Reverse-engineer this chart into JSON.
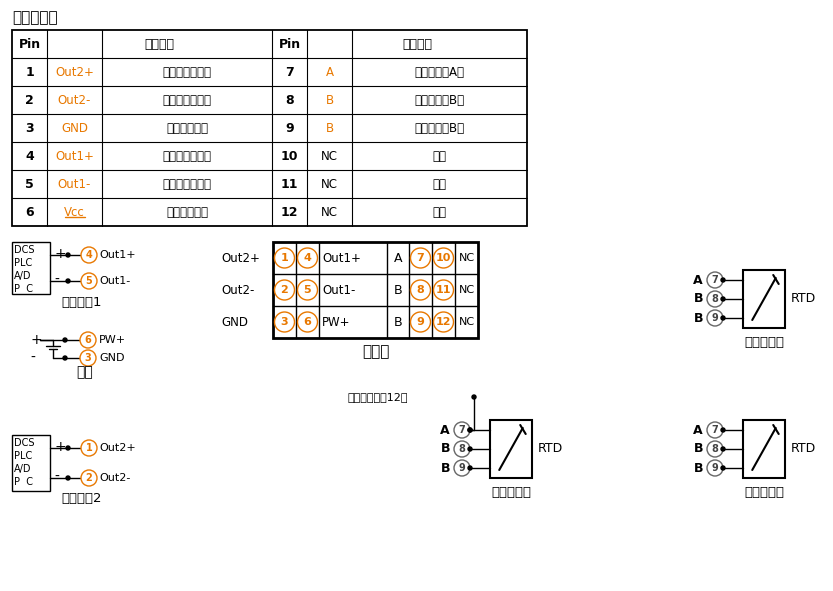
{
  "title": "引脚定义：",
  "table_left": [
    [
      "1",
      "Out2+",
      "输出信号２正端"
    ],
    [
      "2",
      "Out2-",
      "输出信号２负端"
    ],
    [
      "3",
      "GND",
      "辅助电源负端"
    ],
    [
      "4",
      "Out1+",
      "输出信号１正端"
    ],
    [
      "5",
      "Out1-",
      "输出信号１负端"
    ],
    [
      "6",
      "Vcc",
      "辅助电源正端"
    ]
  ],
  "table_right": [
    [
      "7",
      "A",
      "热电阵输入A端"
    ],
    [
      "8",
      "B",
      "热电阵输入B端"
    ],
    [
      "9",
      "B",
      "热电阵输入B端"
    ],
    [
      "10",
      "NC",
      "空脚"
    ],
    [
      "11",
      "NC",
      "空脚"
    ],
    [
      "12",
      "NC",
      "空脚"
    ]
  ],
  "sig_out1_label": "信号输出1",
  "sig_out2_label": "信号输出2",
  "power_label": "电源",
  "top_view_label": "顶视图",
  "note_label": "不用接或接到12脚",
  "rtd3_label": "三线热电阵",
  "rtd4_label": "四线热电阵",
  "rtd2_label": "两线热电阵",
  "bg_color": "#ffffff",
  "orange_color": "#E87800",
  "gray_color": "#808080"
}
